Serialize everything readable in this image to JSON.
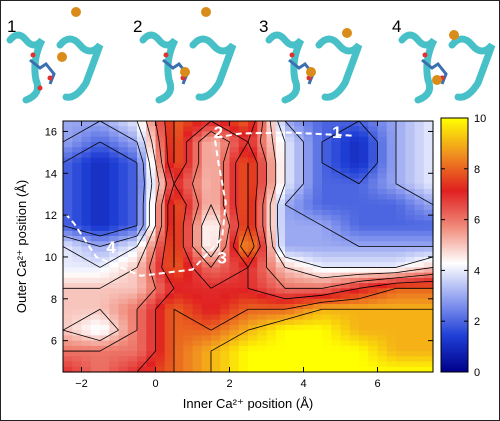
{
  "states": [
    {
      "label": "1"
    },
    {
      "label": "2"
    },
    {
      "label": "3"
    },
    {
      "label": "4"
    }
  ],
  "colors": {
    "protein": "#48c0c8",
    "ion": "#d98c1a",
    "path": "#ffffff",
    "contour": "#000000"
  },
  "chart_data": {
    "type": "heatmap",
    "title": "",
    "xlabel": "Inner Ca²⁺ position (Å)",
    "ylabel": "Outer Ca²⁺ position (Å)",
    "xlim": [
      -2.5,
      7.5
    ],
    "ylim": [
      4.5,
      16.5
    ],
    "xticks": [
      -2,
      0,
      2,
      4,
      6
    ],
    "yticks": [
      6,
      8,
      10,
      12,
      14,
      16
    ],
    "colorbar": {
      "min": 0,
      "max": 10,
      "ticks": [
        0,
        2,
        4,
        6,
        8,
        10
      ],
      "colormap": [
        "#00008b",
        "#1f3fd6",
        "#8f9ff0",
        "#ffffff",
        "#f08a7a",
        "#e02020",
        "#f09020",
        "#ffff00"
      ]
    },
    "x": [
      -2.5,
      -1.5,
      -0.5,
      0.5,
      1.5,
      2.5,
      3.5,
      4.5,
      5.5,
      6.5,
      7.5
    ],
    "y": [
      16.5,
      15.5,
      14.5,
      13.5,
      12.5,
      11.5,
      10.5,
      9.5,
      8.5,
      7.5,
      6.5,
      5.5,
      4.5
    ],
    "z": [
      [
        3,
        3,
        4,
        8,
        7,
        8,
        3,
        2,
        2,
        3,
        4
      ],
      [
        3,
        2,
        3,
        8,
        5,
        7,
        4,
        2,
        1,
        3,
        4
      ],
      [
        2,
        1,
        2,
        8,
        5,
        8,
        4,
        2,
        1,
        3,
        4
      ],
      [
        2,
        1,
        2,
        7,
        5,
        8,
        4,
        2,
        2,
        3,
        4
      ],
      [
        2,
        1,
        2,
        8,
        5,
        8,
        3,
        2,
        2,
        2,
        3
      ],
      [
        2,
        1,
        2,
        8,
        4,
        8,
        3,
        3,
        2,
        2,
        2
      ],
      [
        4,
        3,
        4,
        8,
        4,
        9,
        3,
        3,
        3,
        3,
        3
      ],
      [
        4,
        4,
        5,
        8,
        6,
        7,
        5,
        4,
        4,
        4,
        5
      ],
      [
        5,
        5,
        5,
        7,
        7,
        7,
        6,
        6,
        7,
        8,
        8
      ],
      [
        5,
        5,
        6,
        8,
        7,
        8,
        8,
        9,
        9,
        9,
        9
      ],
      [
        5,
        4,
        6,
        8,
        8,
        9,
        10,
        10,
        9,
        9,
        9
      ],
      [
        6,
        6,
        6,
        8,
        9,
        10,
        10,
        10,
        10,
        9,
        9
      ],
      [
        7,
        6,
        7,
        8,
        9,
        10,
        10,
        10,
        10,
        10,
        10
      ]
    ],
    "annotations": [
      {
        "text": "1",
        "x": 4.9,
        "y": 15.9
      },
      {
        "text": "2",
        "x": 1.7,
        "y": 15.9
      },
      {
        "text": "3",
        "x": 1.8,
        "y": 9.9
      },
      {
        "text": "4",
        "x": -1.2,
        "y": 10.4
      }
    ],
    "transition_path": [
      {
        "x": 5.3,
        "y": 15.8
      },
      {
        "x": 3.6,
        "y": 15.95
      },
      {
        "x": 2.3,
        "y": 15.9
      },
      {
        "x": 1.6,
        "y": 15.7
      },
      {
        "x": 1.7,
        "y": 14.5
      },
      {
        "x": 1.9,
        "y": 12.6
      },
      {
        "x": 1.8,
        "y": 10.9
      },
      {
        "x": 1.0,
        "y": 9.4
      },
      {
        "x": -0.4,
        "y": 9.1
      },
      {
        "x": -1.6,
        "y": 10.0
      },
      {
        "x": -2.2,
        "y": 11.6
      },
      {
        "x": -2.4,
        "y": 12.0
      }
    ]
  }
}
